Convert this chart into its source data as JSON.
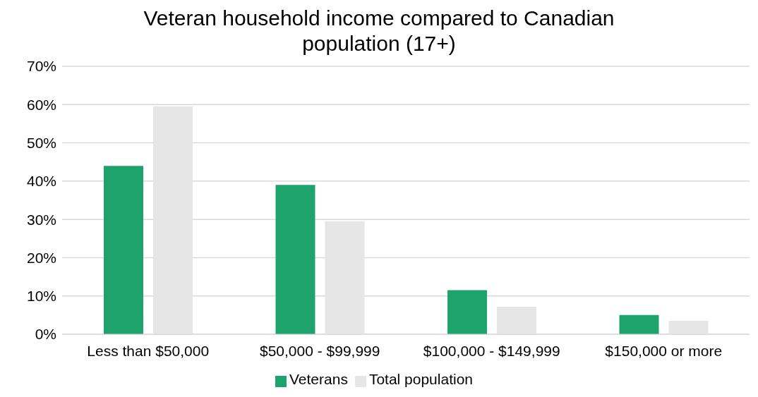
{
  "chart_data": {
    "type": "bar",
    "title": "Veteran household income compared to Canadian population (17+)",
    "categories": [
      "Less than $50,000",
      "$50,000 - $99,999",
      "$100,000 - $149,999",
      "$150,000 or more"
    ],
    "series": [
      {
        "name": "Veterans",
        "color": "#1fa36c",
        "values": [
          44,
          39,
          11.5,
          5
        ]
      },
      {
        "name": "Total population",
        "color": "#e6e6e6",
        "values": [
          59.5,
          29.5,
          7.2,
          3.5
        ]
      }
    ],
    "ylim": [
      0,
      70
    ],
    "yticks": [
      {
        "value": 0,
        "label": "0%"
      },
      {
        "value": 10,
        "label": "10%"
      },
      {
        "value": 20,
        "label": "20%"
      },
      {
        "value": 30,
        "label": "30%"
      },
      {
        "value": 40,
        "label": "40%"
      },
      {
        "value": 50,
        "label": "50%"
      },
      {
        "value": 60,
        "label": "60%"
      },
      {
        "value": 70,
        "label": "70%"
      }
    ],
    "grid": "y",
    "legend": "bottom"
  }
}
